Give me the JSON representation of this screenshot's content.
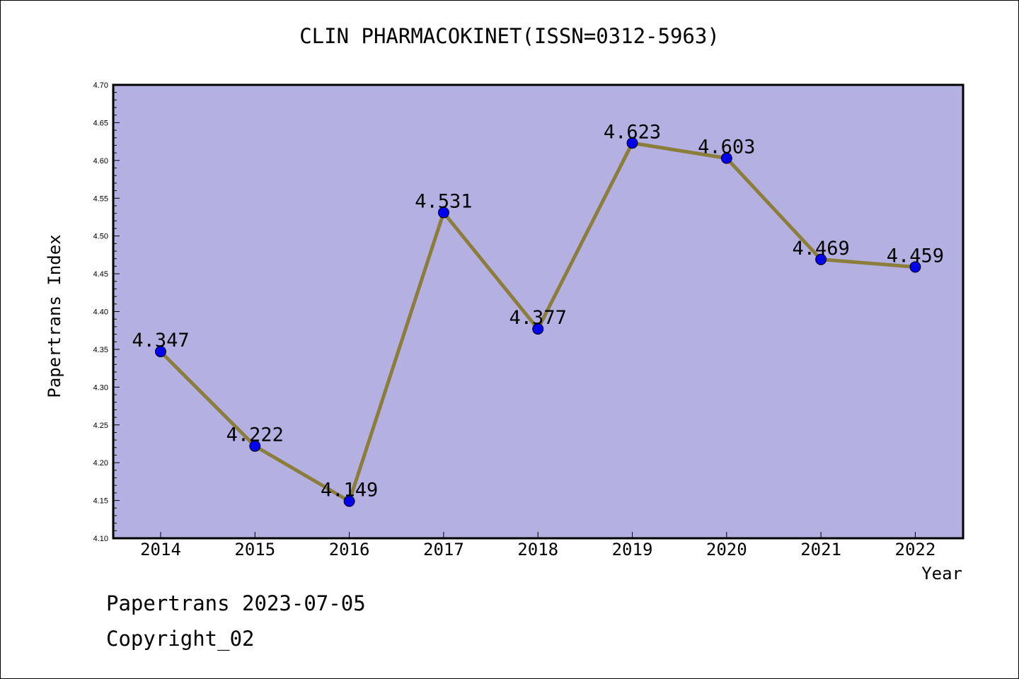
{
  "chart_data": {
    "type": "line",
    "title": "CLIN PHARMACOKINET(ISSN=0312-5963)",
    "xlabel": "Year",
    "ylabel": "Papertrans Index",
    "categories": [
      "2014",
      "2015",
      "2016",
      "2017",
      "2018",
      "2019",
      "2020",
      "2021",
      "2022"
    ],
    "values": [
      4.347,
      4.222,
      4.149,
      4.531,
      4.377,
      4.623,
      4.603,
      4.469,
      4.459
    ],
    "data_labels": [
      "4.347",
      "4.222",
      "4.149",
      "4.531",
      "4.377",
      "4.623",
      "4.603",
      "4.469",
      "4.459"
    ],
    "ylim": [
      4.1,
      4.7
    ],
    "yticks": [
      "4.10",
      "4.15",
      "4.20",
      "4.25",
      "4.30",
      "4.35",
      "4.40",
      "4.45",
      "4.50",
      "4.55",
      "4.60",
      "4.65",
      "4.70"
    ],
    "grid": false,
    "colors": {
      "plot_background": "#b5b0e2",
      "line": "#8b7d3a",
      "marker": "#0000ee"
    }
  },
  "footer": {
    "line1": "Papertrans 2023-07-05",
    "line2": "Copyright_02"
  }
}
